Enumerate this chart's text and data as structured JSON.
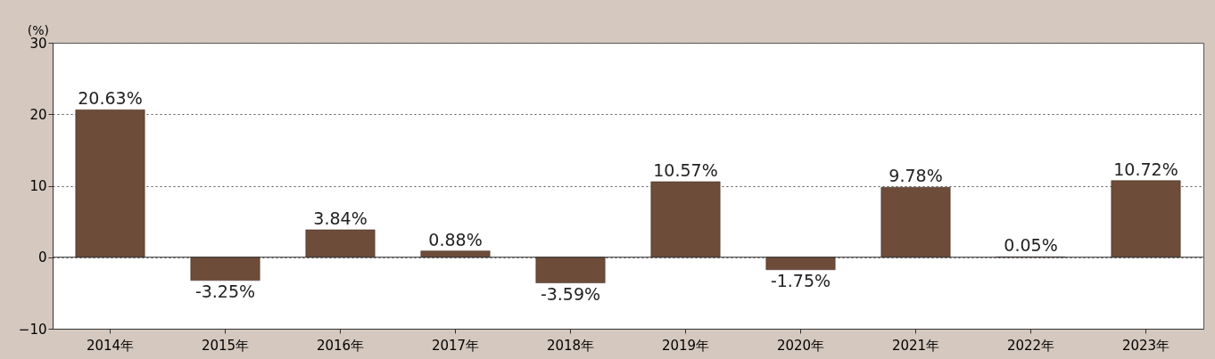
{
  "chart_data": {
    "type": "bar",
    "ylabel": "(%)",
    "categories": [
      "2014年",
      "2015年",
      "2016年",
      "2017年",
      "2018年",
      "2019年",
      "2020年",
      "2021年",
      "2022年",
      "2023年"
    ],
    "values": [
      20.63,
      -3.25,
      3.84,
      0.88,
      -3.59,
      10.57,
      -1.75,
      9.78,
      0.05,
      10.72
    ],
    "value_labels": [
      "20.63%",
      "-3.25%",
      "3.84%",
      "0.88%",
      "-3.59%",
      "10.57%",
      "-1.75%",
      "9.78%",
      "0.05%",
      "10.72%"
    ],
    "color": "#6e4c3a",
    "ylim": [
      -10,
      30
    ],
    "yticks": [
      -10,
      0,
      10,
      20,
      30
    ],
    "grid": "y"
  }
}
